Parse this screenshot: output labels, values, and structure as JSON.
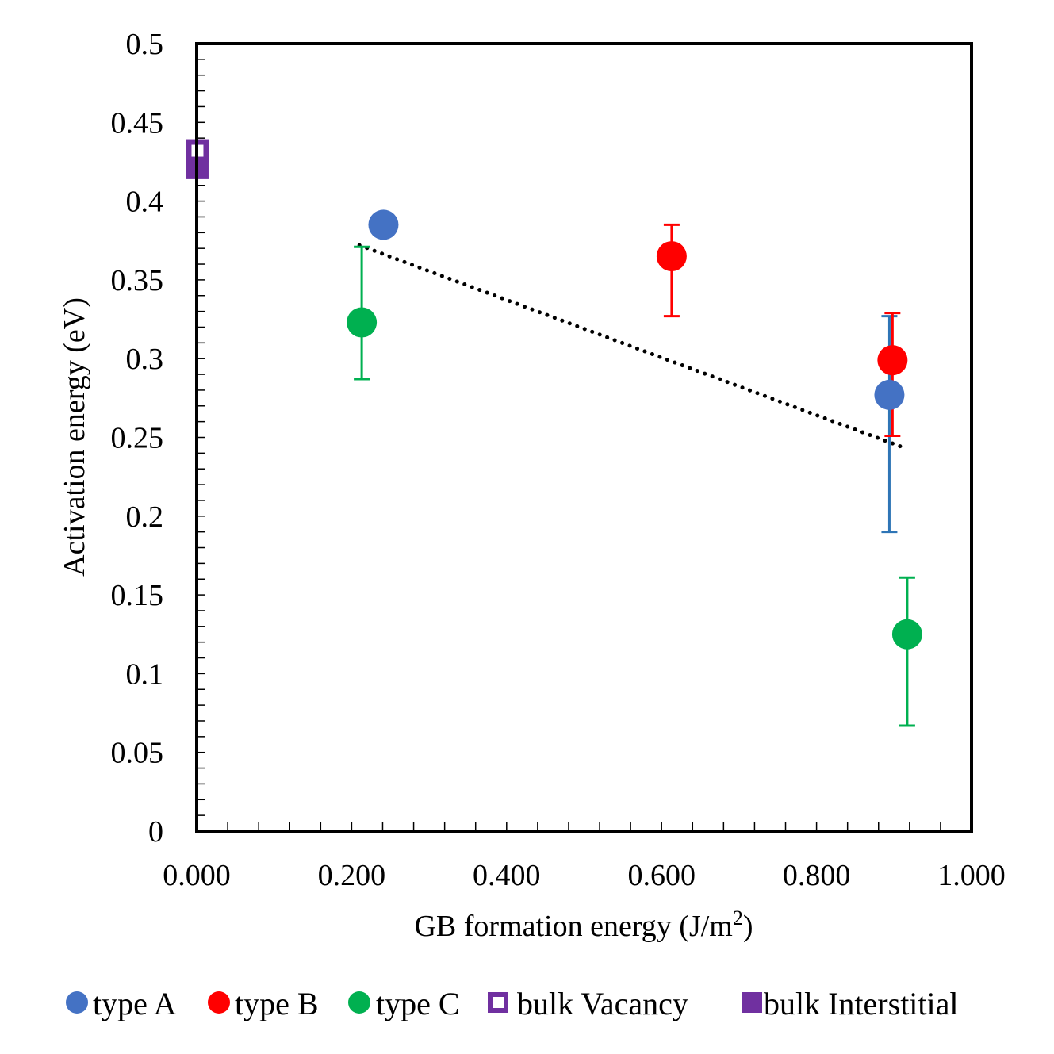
{
  "chart_data": {
    "type": "scatter",
    "title": "",
    "xlabel": "GB formation energy (J/m",
    "xlabel_sup": "2",
    "xlabel_tail": ")",
    "ylabel": "Activation energy (eV)",
    "xlim": [
      0,
      1.0
    ],
    "ylim": [
      0,
      0.5
    ],
    "x_ticks": [
      "0.000",
      "0.200",
      "0.400",
      "0.600",
      "0.800",
      "1.000"
    ],
    "y_ticks": [
      "0",
      "0.05",
      "0.1",
      "0.15",
      "0.2",
      "0.25",
      "0.3",
      "0.35",
      "0.4",
      "0.45",
      "0.5"
    ],
    "grid": false,
    "legend_position": "bottom",
    "series": [
      {
        "name": "type A",
        "color": "#4472C4",
        "errorbar_color": "#2E75B6",
        "marker": "circle",
        "points": [
          {
            "x": 0.241,
            "y": 0.385
          },
          {
            "x": 0.894,
            "y": 0.277,
            "err_low": 0.19,
            "err_high": 0.327
          }
        ]
      },
      {
        "name": "type B",
        "color": "#FF0000",
        "errorbar_color": "#FF0000",
        "marker": "circle",
        "points": [
          {
            "x": 0.613,
            "y": 0.365,
            "err_low": 0.327,
            "err_high": 0.385
          },
          {
            "x": 0.898,
            "y": 0.299,
            "err_low": 0.251,
            "err_high": 0.329
          }
        ]
      },
      {
        "name": "type C",
        "color": "#00B050",
        "errorbar_color": "#00B050",
        "marker": "circle",
        "points": [
          {
            "x": 0.213,
            "y": 0.323,
            "err_low": 0.287,
            "err_high": 0.371
          },
          {
            "x": 0.917,
            "y": 0.125,
            "err_low": 0.067,
            "err_high": 0.161
          }
        ]
      },
      {
        "name": "bulk Vacancy",
        "color": "#7030A0",
        "marker": "square-open",
        "points": [
          {
            "x": 0.001,
            "y": 0.432
          }
        ]
      },
      {
        "name": "bulk Interstitial",
        "color": "#7030A0",
        "marker": "square-filled",
        "points": [
          {
            "x": 0.001,
            "y": 0.421
          }
        ]
      }
    ],
    "trendline": {
      "style": "dotted",
      "color": "#000000",
      "x": [
        0.21,
        0.91
      ],
      "y": [
        0.372,
        0.244
      ]
    }
  }
}
